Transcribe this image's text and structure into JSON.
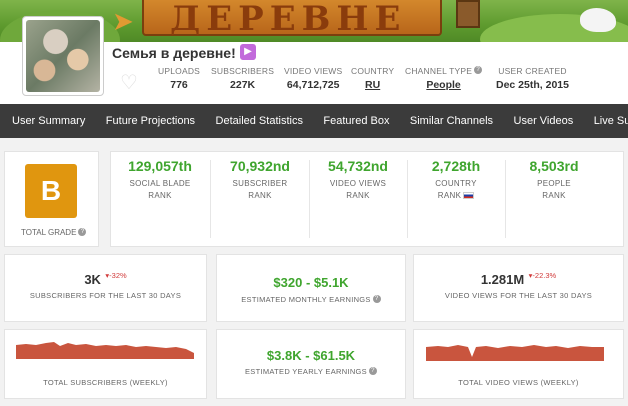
{
  "banner": {
    "sign_text": "ДЕРЕВНЕ"
  },
  "channel": {
    "name": "Семья в деревне!",
    "badge_icon": "youtube-creator-icon"
  },
  "header_stats": [
    {
      "label": "UPLOADS",
      "value": "776"
    },
    {
      "label": "SUBSCRIBERS",
      "value": "227K"
    },
    {
      "label": "VIDEO VIEWS",
      "value": "64,712,725"
    },
    {
      "label": "COUNTRY",
      "value": "RU"
    },
    {
      "label": "CHANNEL TYPE",
      "value": "People"
    },
    {
      "label": "USER CREATED",
      "value": "Dec 25th, 2015"
    }
  ],
  "nav": [
    "User Summary",
    "Future Projections",
    "Detailed Statistics",
    "Featured Box",
    "Similar Channels",
    "User Videos",
    "Live Subscriber Count"
  ],
  "grade": {
    "letter": "B",
    "label": "TOTAL GRADE"
  },
  "ranks": [
    {
      "value": "129,057th",
      "line1": "SOCIAL BLADE",
      "line2": "RANK"
    },
    {
      "value": "70,932nd",
      "line1": "SUBSCRIBER",
      "line2": "RANK"
    },
    {
      "value": "54,732nd",
      "line1": "VIDEO VIEWS",
      "line2": "RANK"
    },
    {
      "value": "2,728th",
      "line1": "COUNTRY",
      "line2": "RANK"
    },
    {
      "value": "8,503rd",
      "line1": "PEOPLE",
      "line2": "RANK"
    }
  ],
  "summary": {
    "subs_30": {
      "value": "3K",
      "delta": "-32%",
      "label": "SUBSCRIBERS FOR THE LAST 30 DAYS"
    },
    "monthly": {
      "value": "$320 - $5.1K",
      "label": "ESTIMATED MONTHLY EARNINGS"
    },
    "views_30": {
      "value": "1.281M",
      "delta": "-22.3%",
      "label": "VIDEO VIEWS FOR THE LAST 30 DAYS"
    },
    "yearly": {
      "value": "$3.8K - $61.5K",
      "label": "ESTIMATED YEARLY EARNINGS"
    },
    "subs_weekly_label": "TOTAL SUBSCRIBERS (WEEKLY)",
    "views_weekly_label": "TOTAL VIDEO VIEWS (WEEKLY)"
  },
  "colors": {
    "accent_green": "#3fa52e",
    "grade_orange": "#e0960f",
    "nav_bg": "#3b3b3b",
    "sparkline": "#c9553e"
  }
}
